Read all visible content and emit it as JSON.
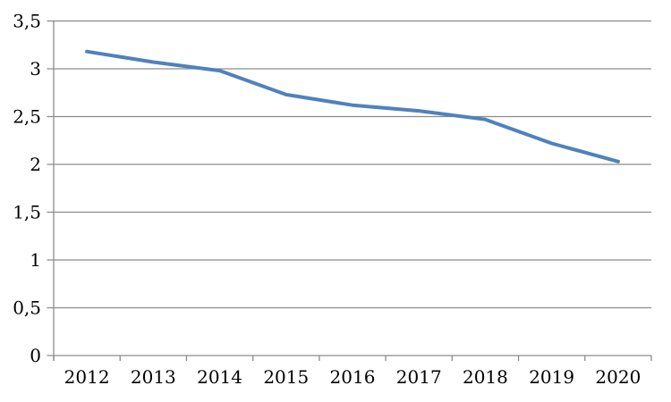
{
  "chart_data": {
    "type": "line",
    "title": "",
    "categories": [
      "2012",
      "2013",
      "2014",
      "2015",
      "2016",
      "2017",
      "2018",
      "2019",
      "2020"
    ],
    "values": [
      3.18,
      3.07,
      2.98,
      2.73,
      2.62,
      2.56,
      2.47,
      2.22,
      2.03
    ],
    "xlabel": "",
    "ylabel": "",
    "ylim": [
      0,
      3.5
    ],
    "ytick_step": 0.5,
    "decimal_separator": ",",
    "yticks": [
      {
        "value": 0,
        "label": "0"
      },
      {
        "value": 0.5,
        "label": "0,5"
      },
      {
        "value": 1,
        "label": "1"
      },
      {
        "value": 1.5,
        "label": "1,5"
      },
      {
        "value": 2,
        "label": "2"
      },
      {
        "value": 2.5,
        "label": "2,5"
      },
      {
        "value": 3,
        "label": "3"
      },
      {
        "value": 3.5,
        "label": "3,5"
      }
    ],
    "grid": true,
    "legend_position": "none",
    "colors": {
      "line": "#4F81BD",
      "gridline": "#8C8C8C",
      "axis": "#8C8C8C",
      "text": "#000000",
      "background": "#FFFFFF"
    }
  }
}
